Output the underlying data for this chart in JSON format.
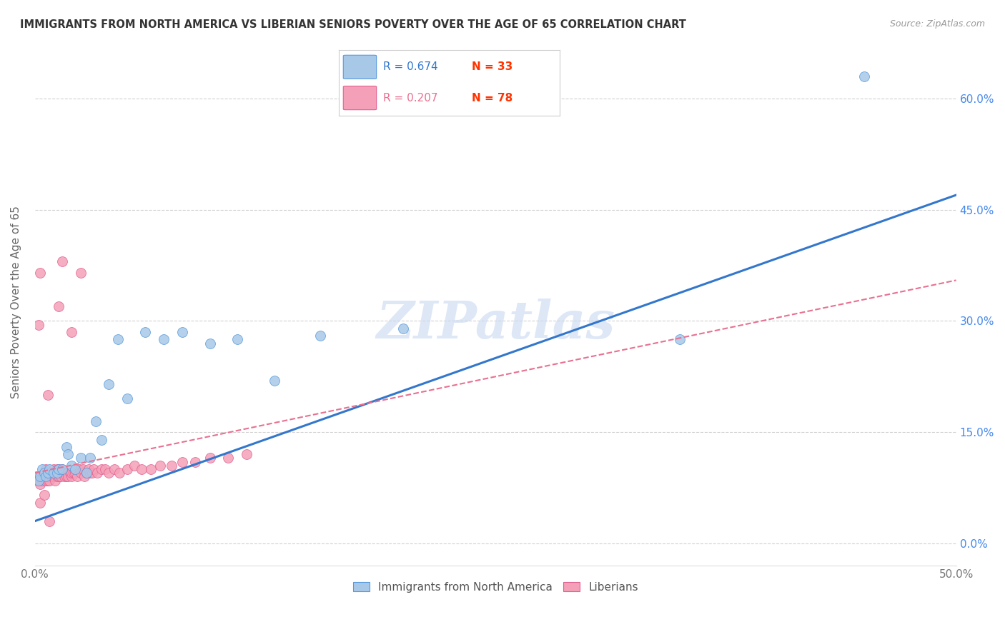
{
  "title": "IMMIGRANTS FROM NORTH AMERICA VS LIBERIAN SENIORS POVERTY OVER THE AGE OF 65 CORRELATION CHART",
  "source": "Source: ZipAtlas.com",
  "ylabel": "Seniors Poverty Over the Age of 65",
  "xlim": [
    0,
    0.5
  ],
  "ylim": [
    -0.03,
    0.68
  ],
  "xticks": [
    0.0,
    0.1,
    0.2,
    0.3,
    0.4,
    0.5
  ],
  "xticklabels": [
    "0.0%",
    "",
    "",
    "",
    "",
    "50.0%"
  ],
  "yticks": [
    0.0,
    0.15,
    0.3,
    0.45,
    0.6
  ],
  "right_yticklabels": [
    "0.0%",
    "15.0%",
    "30.0%",
    "45.0%",
    "60.0%"
  ],
  "blue_R": 0.674,
  "blue_N": 33,
  "pink_R": 0.207,
  "pink_N": 78,
  "blue_color": "#a8c8e8",
  "pink_color": "#f4a0b8",
  "blue_edge_color": "#5599dd",
  "pink_edge_color": "#e06090",
  "blue_line_color": "#3377cc",
  "pink_line_color": "#e87090",
  "blue_N_color": "#ff3300",
  "pink_N_color": "#ff3300",
  "watermark_color": "#c8d8f0",
  "watermark": "ZIPatlas",
  "bottom_legend_blue": "Immigrants from North America",
  "bottom_legend_pink": "Liberians",
  "blue_scatter_x": [
    0.002,
    0.003,
    0.004,
    0.005,
    0.006,
    0.007,
    0.008,
    0.01,
    0.012,
    0.013,
    0.015,
    0.017,
    0.018,
    0.02,
    0.022,
    0.025,
    0.028,
    0.03,
    0.033,
    0.036,
    0.04,
    0.045,
    0.05,
    0.06,
    0.07,
    0.08,
    0.095,
    0.11,
    0.13,
    0.155,
    0.2,
    0.35,
    0.45
  ],
  "blue_scatter_y": [
    0.085,
    0.09,
    0.1,
    0.095,
    0.09,
    0.095,
    0.1,
    0.095,
    0.095,
    0.1,
    0.1,
    0.13,
    0.12,
    0.105,
    0.1,
    0.115,
    0.095,
    0.115,
    0.165,
    0.14,
    0.215,
    0.275,
    0.195,
    0.285,
    0.275,
    0.285,
    0.27,
    0.275,
    0.22,
    0.28,
    0.29,
    0.275,
    0.63
  ],
  "pink_scatter_x": [
    0.001,
    0.002,
    0.003,
    0.003,
    0.004,
    0.004,
    0.005,
    0.005,
    0.006,
    0.006,
    0.006,
    0.007,
    0.007,
    0.008,
    0.008,
    0.009,
    0.009,
    0.01,
    0.01,
    0.01,
    0.011,
    0.011,
    0.012,
    0.012,
    0.012,
    0.013,
    0.013,
    0.014,
    0.014,
    0.015,
    0.015,
    0.016,
    0.016,
    0.017,
    0.017,
    0.018,
    0.018,
    0.019,
    0.02,
    0.02,
    0.021,
    0.022,
    0.022,
    0.023,
    0.024,
    0.025,
    0.026,
    0.027,
    0.028,
    0.029,
    0.03,
    0.031,
    0.032,
    0.034,
    0.036,
    0.038,
    0.04,
    0.043,
    0.046,
    0.05,
    0.054,
    0.058,
    0.063,
    0.068,
    0.074,
    0.08,
    0.087,
    0.095,
    0.105,
    0.115,
    0.002,
    0.003,
    0.015,
    0.02,
    0.025,
    0.013,
    0.008,
    0.007
  ],
  "pink_scatter_y": [
    0.09,
    0.085,
    0.08,
    0.055,
    0.085,
    0.09,
    0.095,
    0.065,
    0.09,
    0.085,
    0.1,
    0.09,
    0.085,
    0.095,
    0.085,
    0.095,
    0.09,
    0.09,
    0.095,
    0.1,
    0.09,
    0.085,
    0.095,
    0.09,
    0.1,
    0.09,
    0.1,
    0.095,
    0.09,
    0.095,
    0.1,
    0.095,
    0.09,
    0.095,
    0.09,
    0.095,
    0.09,
    0.095,
    0.09,
    0.095,
    0.095,
    0.095,
    0.1,
    0.09,
    0.1,
    0.095,
    0.1,
    0.09,
    0.095,
    0.1,
    0.095,
    0.095,
    0.1,
    0.095,
    0.1,
    0.1,
    0.095,
    0.1,
    0.095,
    0.1,
    0.105,
    0.1,
    0.1,
    0.105,
    0.105,
    0.11,
    0.11,
    0.115,
    0.115,
    0.12,
    0.295,
    0.365,
    0.38,
    0.285,
    0.365,
    0.32,
    0.03,
    0.2
  ],
  "blue_line_x": [
    0.0,
    0.5
  ],
  "blue_line_y_start": 0.03,
  "blue_line_y_end": 0.47,
  "pink_line_x": [
    0.0,
    0.5
  ],
  "pink_line_y_start": 0.095,
  "pink_line_y_end": 0.355
}
